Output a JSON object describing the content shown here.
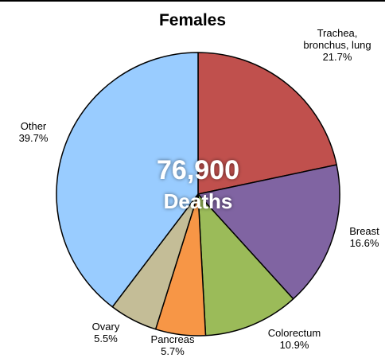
{
  "chart_data": {
    "type": "pie",
    "title": "Females",
    "center_total": "76,900",
    "center_caption": "Deaths",
    "slices": [
      {
        "label_lines": [
          "Trachea,",
          "bronchus, lung"
        ],
        "percent_label": "21.7%",
        "value": 21.7,
        "color": "#C0504D"
      },
      {
        "label_lines": [
          "Breast"
        ],
        "percent_label": "16.6%",
        "value": 16.6,
        "color": "#8064A2"
      },
      {
        "label_lines": [
          "Colorectum"
        ],
        "percent_label": "10.9%",
        "value": 10.9,
        "color": "#9BBB59"
      },
      {
        "label_lines": [
          "Pancreas"
        ],
        "percent_label": "5.7%",
        "value": 5.7,
        "color": "#F79646"
      },
      {
        "label_lines": [
          "Ovary"
        ],
        "percent_label": "5.5%",
        "value": 5.5,
        "color": "#C4BD97"
      },
      {
        "label_lines": [
          "Other"
        ],
        "percent_label": "39.7%",
        "value": 39.7,
        "color": "#99CCFF"
      }
    ]
  }
}
